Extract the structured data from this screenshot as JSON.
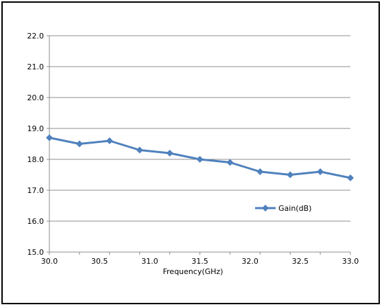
{
  "chart_data": {
    "type": "line",
    "title": "",
    "xlabel": "Frequency(GHz)",
    "ylabel": "",
    "x": [
      30.0,
      30.3,
      30.6,
      30.9,
      31.2,
      31.5,
      31.8,
      32.1,
      32.4,
      32.7,
      33.0
    ],
    "xticks": [
      "30.0",
      "30.5",
      "31.0",
      "31.5",
      "32.0",
      "32.5",
      "33.0"
    ],
    "xtick_values": [
      30.0,
      30.5,
      31.0,
      31.5,
      32.0,
      32.5,
      33.0
    ],
    "yticks": [
      "22.0",
      "21.0",
      "20.0",
      "19.0",
      "18.0",
      "17.0",
      "16.0",
      "15.0"
    ],
    "ytick_values": [
      22,
      21,
      20,
      19,
      18,
      17,
      16,
      15
    ],
    "xlim": [
      30.0,
      33.0
    ],
    "ylim": [
      15.0,
      22.0
    ],
    "grid": "horizontal",
    "legend_position": "inside-lower-right",
    "series": [
      {
        "name": "Gain(dB)",
        "color": "#4f81bd",
        "marker": "diamond",
        "values": [
          18.7,
          18.5,
          18.6,
          18.3,
          18.2,
          18.0,
          17.9,
          17.6,
          17.5,
          17.6,
          17.4
        ]
      }
    ]
  }
}
